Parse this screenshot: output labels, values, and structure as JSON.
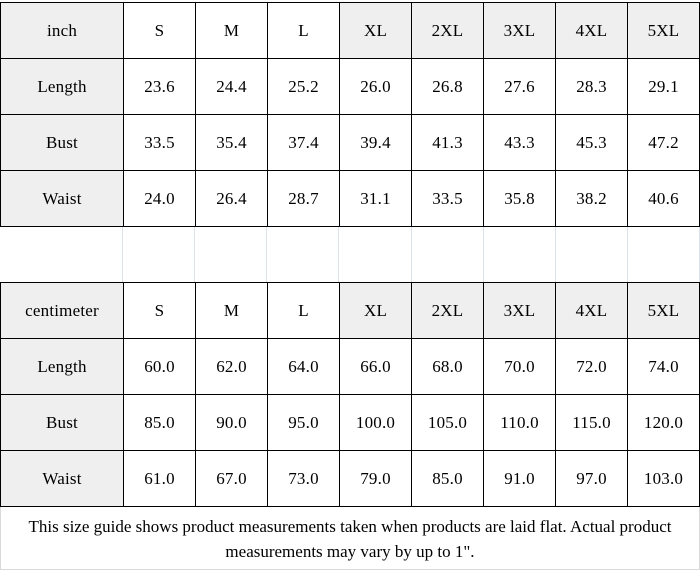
{
  "colors": {
    "border": "#000000",
    "header_fill": "#efefef",
    "gridline": "#dbe2ea",
    "footer_hairline": "#d9d9d9",
    "text": "#000000"
  },
  "tables": [
    {
      "unit_label": "inch",
      "sizes": [
        "S",
        "M",
        "L",
        "XL",
        "2XL",
        "3XL",
        "4XL",
        "5XL"
      ],
      "header_shaded": [
        false,
        false,
        false,
        true,
        true,
        true,
        true,
        true
      ],
      "rows": [
        {
          "label": "Length",
          "values": [
            "23.6",
            "24.4",
            "25.2",
            "26.0",
            "26.8",
            "27.6",
            "28.3",
            "29.1"
          ]
        },
        {
          "label": "Bust",
          "values": [
            "33.5",
            "35.4",
            "37.4",
            "39.4",
            "41.3",
            "43.3",
            "45.3",
            "47.2"
          ]
        },
        {
          "label": "Waist",
          "values": [
            "24.0",
            "26.4",
            "28.7",
            "31.1",
            "33.5",
            "35.8",
            "38.2",
            "40.6"
          ]
        }
      ]
    },
    {
      "unit_label": "centimeter",
      "sizes": [
        "S",
        "M",
        "L",
        "XL",
        "2XL",
        "3XL",
        "4XL",
        "5XL"
      ],
      "header_shaded": [
        false,
        false,
        false,
        true,
        true,
        true,
        true,
        true
      ],
      "rows": [
        {
          "label": "Length",
          "values": [
            "60.0",
            "62.0",
            "64.0",
            "66.0",
            "68.0",
            "70.0",
            "72.0",
            "74.0"
          ]
        },
        {
          "label": "Bust",
          "values": [
            "85.0",
            "90.0",
            "95.0",
            "100.0",
            "105.0",
            "110.0",
            "115.0",
            "120.0"
          ]
        },
        {
          "label": "Waist",
          "values": [
            "61.0",
            "67.0",
            "73.0",
            "79.0",
            "85.0",
            "91.0",
            "97.0",
            "103.0"
          ]
        }
      ]
    }
  ],
  "spacer": {
    "column_count": 9
  },
  "footer": {
    "text": "This size guide shows product measurements taken when products are laid flat. Actual product measurements may vary by up to 1\"."
  }
}
